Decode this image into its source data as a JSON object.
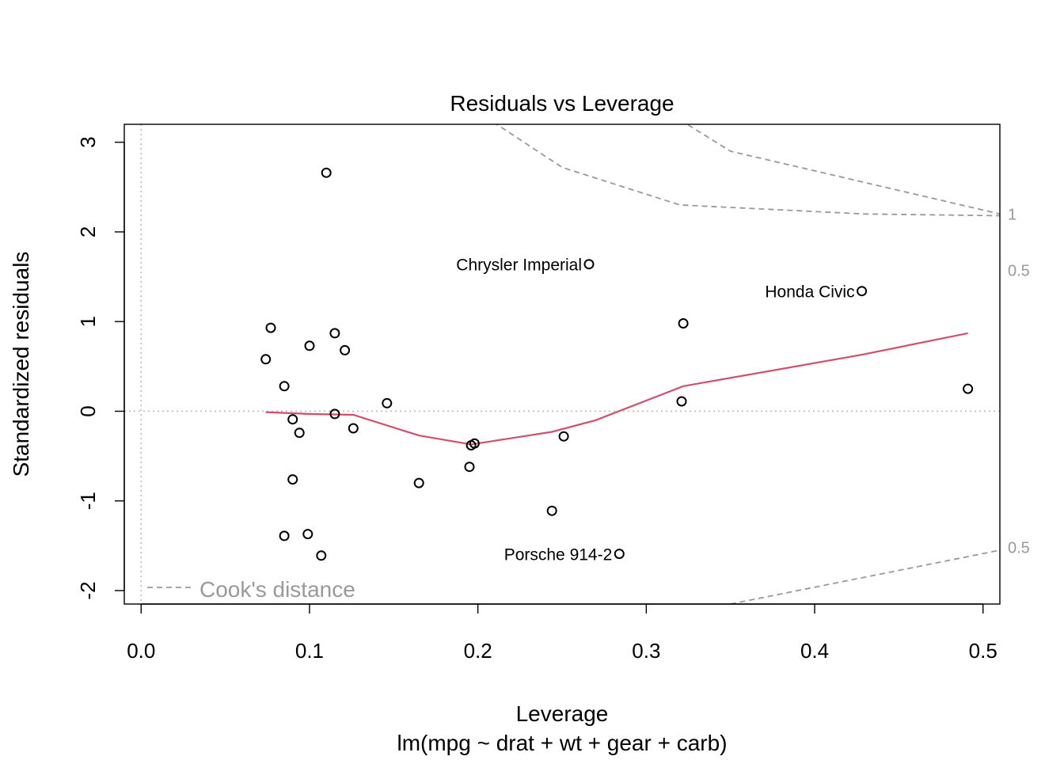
{
  "chart_data": {
    "type": "scatter",
    "title": "Residuals vs Leverage",
    "xlabel": "Leverage",
    "sublabel": "lm(mpg ~ drat + wt + gear + carb)",
    "ylabel": "Standardized residuals",
    "xlim": [
      -0.01,
      0.51
    ],
    "ylim": [
      -2.15,
      3.2
    ],
    "xticks": [
      0.0,
      0.1,
      0.2,
      0.3,
      0.4,
      0.5
    ],
    "xtick_labels": [
      "0.0",
      "0.1",
      "0.2",
      "0.3",
      "0.4",
      "0.5"
    ],
    "yticks": [
      -2,
      -1,
      0,
      1,
      2,
      3
    ],
    "ytick_labels": [
      "-2",
      "-1",
      "0",
      "1",
      "2",
      "3"
    ],
    "points": [
      {
        "x": 0.11,
        "y": 2.66,
        "label": ""
      },
      {
        "x": 0.266,
        "y": 1.64,
        "label": "Chrysler Imperial"
      },
      {
        "x": 0.428,
        "y": 1.34,
        "label": "Honda Civic"
      },
      {
        "x": 0.077,
        "y": 0.93,
        "label": ""
      },
      {
        "x": 0.115,
        "y": 0.87,
        "label": ""
      },
      {
        "x": 0.1,
        "y": 0.73,
        "label": ""
      },
      {
        "x": 0.121,
        "y": 0.68,
        "label": ""
      },
      {
        "x": 0.074,
        "y": 0.58,
        "label": ""
      },
      {
        "x": 0.085,
        "y": 0.28,
        "label": ""
      },
      {
        "x": 0.146,
        "y": 0.09,
        "label": ""
      },
      {
        "x": 0.322,
        "y": 0.98,
        "label": ""
      },
      {
        "x": 0.321,
        "y": 0.11,
        "label": ""
      },
      {
        "x": 0.491,
        "y": 0.25,
        "label": ""
      },
      {
        "x": 0.115,
        "y": -0.03,
        "label": ""
      },
      {
        "x": 0.09,
        "y": -0.09,
        "label": ""
      },
      {
        "x": 0.094,
        "y": -0.24,
        "label": ""
      },
      {
        "x": 0.126,
        "y": -0.19,
        "label": ""
      },
      {
        "x": 0.198,
        "y": -0.36,
        "label": ""
      },
      {
        "x": 0.196,
        "y": -0.38,
        "label": ""
      },
      {
        "x": 0.251,
        "y": -0.28,
        "label": ""
      },
      {
        "x": 0.195,
        "y": -0.62,
        "label": ""
      },
      {
        "x": 0.09,
        "y": -0.76,
        "label": ""
      },
      {
        "x": 0.165,
        "y": -0.8,
        "label": ""
      },
      {
        "x": 0.244,
        "y": -1.11,
        "label": ""
      },
      {
        "x": 0.085,
        "y": -1.39,
        "label": ""
      },
      {
        "x": 0.099,
        "y": -1.37,
        "label": ""
      },
      {
        "x": 0.107,
        "y": -1.61,
        "label": ""
      },
      {
        "x": 0.284,
        "y": -1.59,
        "label": "Porsche 914-2"
      }
    ],
    "smooth_line": {
      "x": [
        0.074,
        0.1,
        0.126,
        0.165,
        0.196,
        0.244,
        0.27,
        0.322,
        0.428,
        0.491
      ],
      "y": [
        -0.01,
        -0.03,
        -0.04,
        -0.27,
        -0.37,
        -0.23,
        -0.1,
        0.28,
        0.63,
        0.87
      ]
    },
    "reference_lines": {
      "h": 0,
      "v": 0
    },
    "cooks_distance": {
      "legend": "Cook's distance",
      "contours": [
        {
          "label": "1",
          "points": [
            [
              0.195,
              3.4
            ],
            [
              0.25,
              2.72
            ],
            [
              0.32,
              2.3
            ],
            [
              0.43,
              2.2
            ],
            [
              0.51,
              2.18
            ]
          ],
          "note": ""
        },
        {
          "label": "0.5",
          "points": [
            [
              0.32,
              3.25
            ],
            [
              0.35,
              2.9
            ],
            [
              0.43,
              2.55
            ],
            [
              0.51,
              2.2
            ]
          ],
          "note": ""
        },
        {
          "label": "0.5",
          "points": [
            [
              0.35,
              -2.15
            ],
            [
              0.43,
              -1.85
            ],
            [
              0.51,
              -1.55
            ]
          ],
          "note": ""
        }
      ],
      "right_labels": [
        "1",
        "0.5",
        "0.5"
      ]
    }
  }
}
